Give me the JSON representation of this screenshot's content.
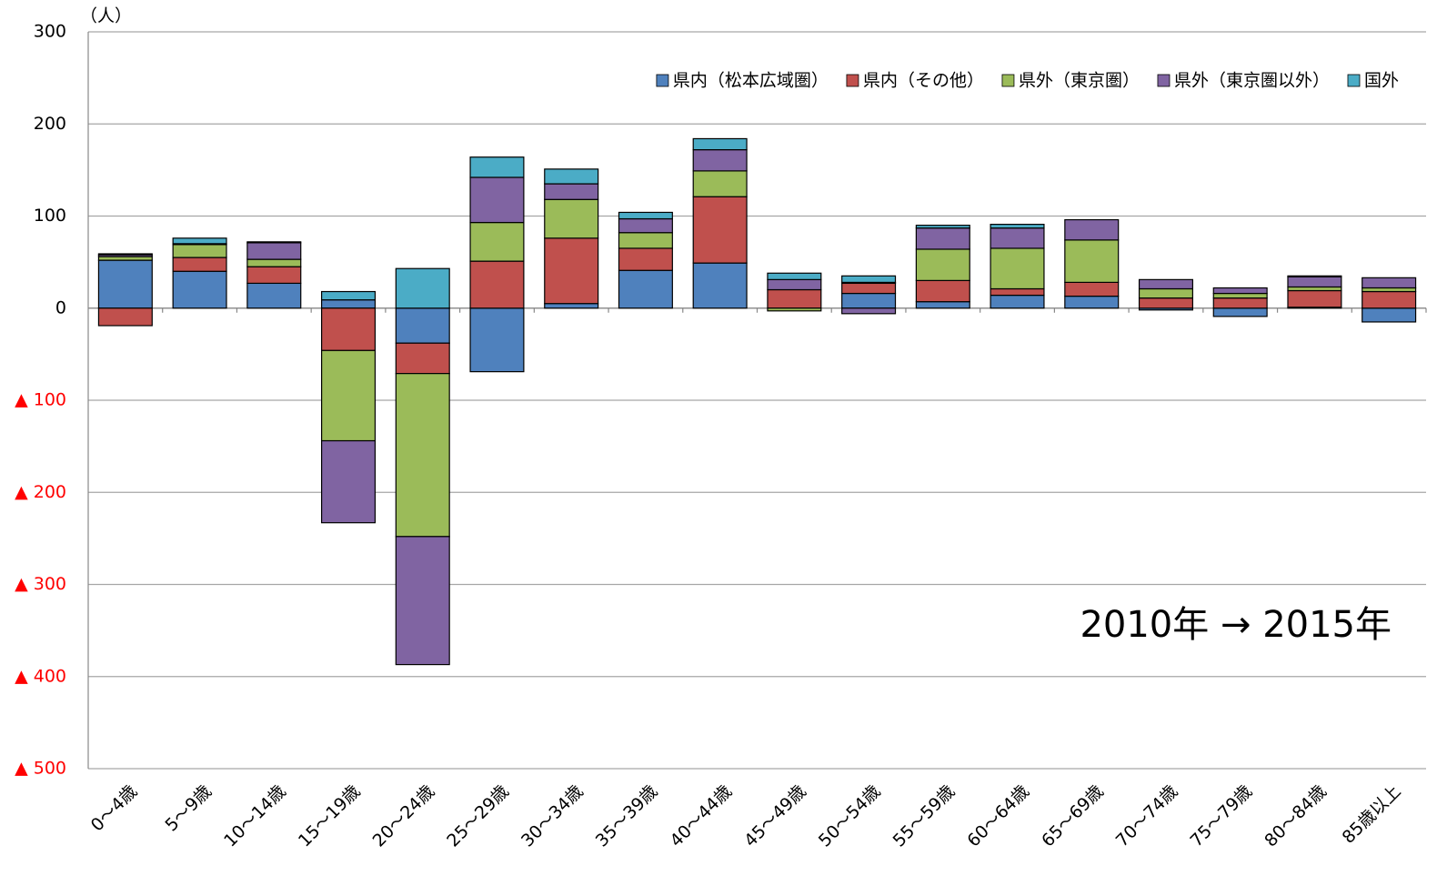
{
  "chart_data": {
    "type": "stacked_bar",
    "unit_label": "（人）",
    "annotation": "2010年 → 2015年",
    "categories": [
      "0～4歳",
      "5～9歳",
      "10～14歳",
      "15～19歳",
      "20～24歳",
      "25～29歳",
      "30～34歳",
      "35～39歳",
      "40～44歳",
      "45～49歳",
      "50～54歳",
      "55～59歳",
      "60～64歳",
      "65～69歳",
      "70～74歳",
      "75～79歳",
      "80～84歳",
      "85歳以上"
    ],
    "series": [
      {
        "name": "県内（松本広域圏）",
        "color": "#4f81bd",
        "values": [
          52,
          40,
          27,
          9,
          -38,
          -69,
          5,
          41,
          49,
          0,
          16,
          7,
          14,
          13,
          -2,
          -9,
          1,
          -15
        ]
      },
      {
        "name": "県内（その他）",
        "color": "#c0504d",
        "values": [
          -19,
          15,
          18,
          -46,
          -33,
          51,
          71,
          24,
          72,
          20,
          11,
          23,
          7,
          15,
          11,
          11,
          18,
          18
        ]
      },
      {
        "name": "県外（東京圏）",
        "color": "#9bbb59",
        "values": [
          4,
          14,
          8,
          -98,
          -177,
          42,
          42,
          17,
          28,
          -3,
          1,
          34,
          44,
          46,
          10,
          5,
          4,
          4
        ]
      },
      {
        "name": "県外（東京圏以外）",
        "color": "#8064a2",
        "values": [
          2,
          1,
          18,
          -89,
          -139,
          49,
          17,
          15,
          23,
          11,
          -6,
          23,
          22,
          22,
          10,
          6,
          11,
          11
        ]
      },
      {
        "name": "国外",
        "color": "#4bacc6",
        "values": [
          1,
          6,
          1,
          9,
          43,
          22,
          16,
          7,
          12,
          7,
          7,
          3,
          4,
          0,
          0,
          0,
          1,
          0
        ]
      }
    ],
    "ylim": [
      -500,
      300
    ],
    "yticks": [
      300,
      200,
      100,
      0,
      {
        "value": -100,
        "label": "▲ 100"
      },
      {
        "value": -200,
        "label": "▲ 200"
      },
      {
        "value": -300,
        "label": "▲ 300"
      },
      {
        "value": -400,
        "label": "▲ 400"
      },
      {
        "value": -500,
        "label": "▲ 500"
      }
    ],
    "grid": true,
    "legend": "top-right"
  }
}
